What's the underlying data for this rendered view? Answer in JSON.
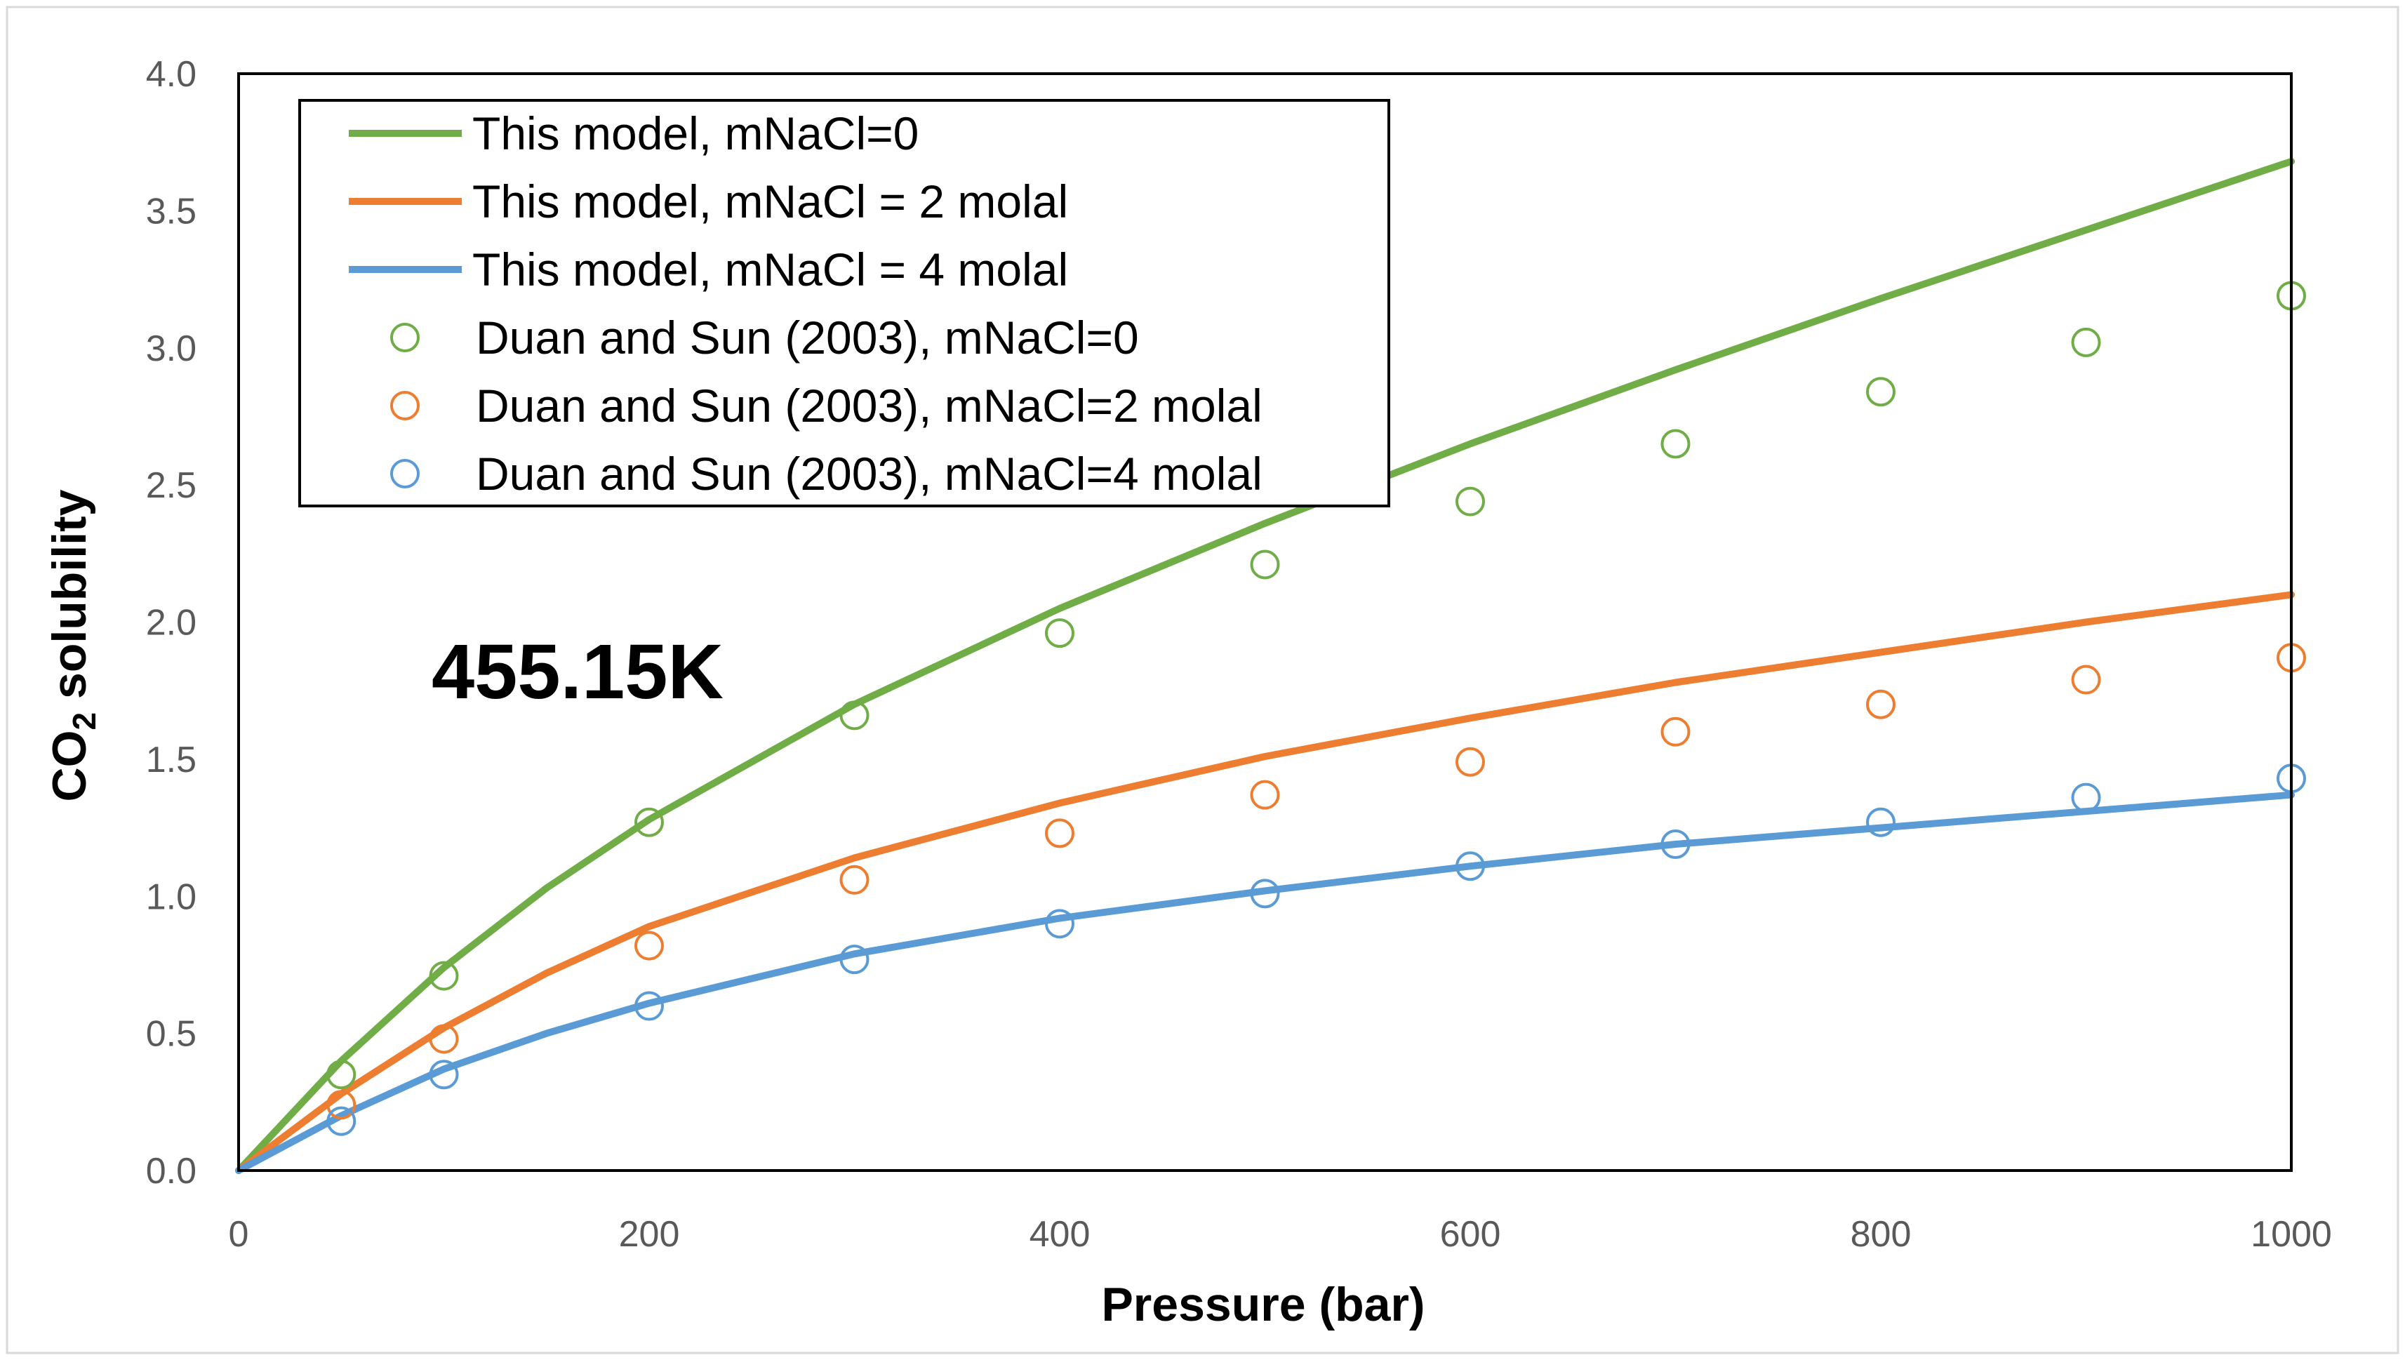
{
  "chart_data": {
    "type": "line",
    "annotation": "455.15K",
    "xlabel": "Pressure (bar)",
    "ylabel_main": "CO",
    "ylabel_sub": "2",
    "ylabel_rest": " solubility",
    "xlim": [
      0,
      1000
    ],
    "ylim": [
      0,
      4.0
    ],
    "x_ticks": [
      0,
      200,
      400,
      600,
      800,
      1000
    ],
    "x_tick_labels": [
      "0",
      "200",
      "400",
      "600",
      "800",
      "1000"
    ],
    "y_ticks": [
      0,
      0.5,
      1.0,
      1.5,
      2.0,
      2.5,
      3.0,
      3.5,
      4.0
    ],
    "y_tick_labels": [
      "0.0",
      "0.5",
      "1.0",
      "1.5",
      "2.0",
      "2.5",
      "3.0",
      "3.5",
      "4.0"
    ],
    "series": [
      {
        "name": "This model, mNaCl=0",
        "kind": "line",
        "color": "#70AD47",
        "x": [
          0,
          50,
          100,
          150,
          200,
          300,
          400,
          500,
          600,
          700,
          800,
          900,
          1000
        ],
        "y": [
          0,
          0.4,
          0.74,
          1.03,
          1.28,
          1.7,
          2.05,
          2.36,
          2.65,
          2.92,
          3.18,
          3.43,
          3.68
        ]
      },
      {
        "name": "This model, mNaCl = 2 molal",
        "kind": "line",
        "color": "#ED7D31",
        "x": [
          0,
          50,
          100,
          150,
          200,
          300,
          400,
          500,
          600,
          700,
          800,
          900,
          1000
        ],
        "y": [
          0,
          0.28,
          0.52,
          0.72,
          0.89,
          1.14,
          1.34,
          1.51,
          1.65,
          1.78,
          1.89,
          2.0,
          2.1
        ]
      },
      {
        "name": "This model, mNaCl = 4 molal",
        "kind": "line",
        "color": "#5B9BD5",
        "x": [
          0,
          50,
          100,
          150,
          200,
          300,
          400,
          500,
          600,
          700,
          800,
          900,
          1000
        ],
        "y": [
          0,
          0.2,
          0.37,
          0.5,
          0.61,
          0.79,
          0.92,
          1.02,
          1.11,
          1.19,
          1.25,
          1.31,
          1.37
        ]
      },
      {
        "name": "Duan and Sun (2003), mNaCl=0",
        "kind": "scatter",
        "color": "#70AD47",
        "x": [
          50,
          100,
          200,
          300,
          400,
          500,
          600,
          700,
          800,
          900,
          1000
        ],
        "y": [
          0.35,
          0.71,
          1.27,
          1.66,
          1.96,
          2.21,
          2.44,
          2.65,
          2.84,
          3.02,
          3.19
        ]
      },
      {
        "name": "Duan and Sun (2003), mNaCl=2 molal",
        "kind": "scatter",
        "color": "#ED7D31",
        "x": [
          50,
          100,
          200,
          300,
          400,
          500,
          600,
          700,
          800,
          900,
          1000
        ],
        "y": [
          0.24,
          0.48,
          0.82,
          1.06,
          1.23,
          1.37,
          1.49,
          1.6,
          1.7,
          1.79,
          1.87
        ]
      },
      {
        "name": "Duan and Sun (2003), mNaCl=4 molal",
        "kind": "scatter",
        "color": "#5B9BD5",
        "x": [
          50,
          100,
          200,
          300,
          400,
          500,
          600,
          700,
          800,
          900,
          1000
        ],
        "y": [
          0.18,
          0.35,
          0.6,
          0.77,
          0.9,
          1.01,
          1.11,
          1.19,
          1.27,
          1.36,
          1.43
        ]
      }
    ]
  }
}
